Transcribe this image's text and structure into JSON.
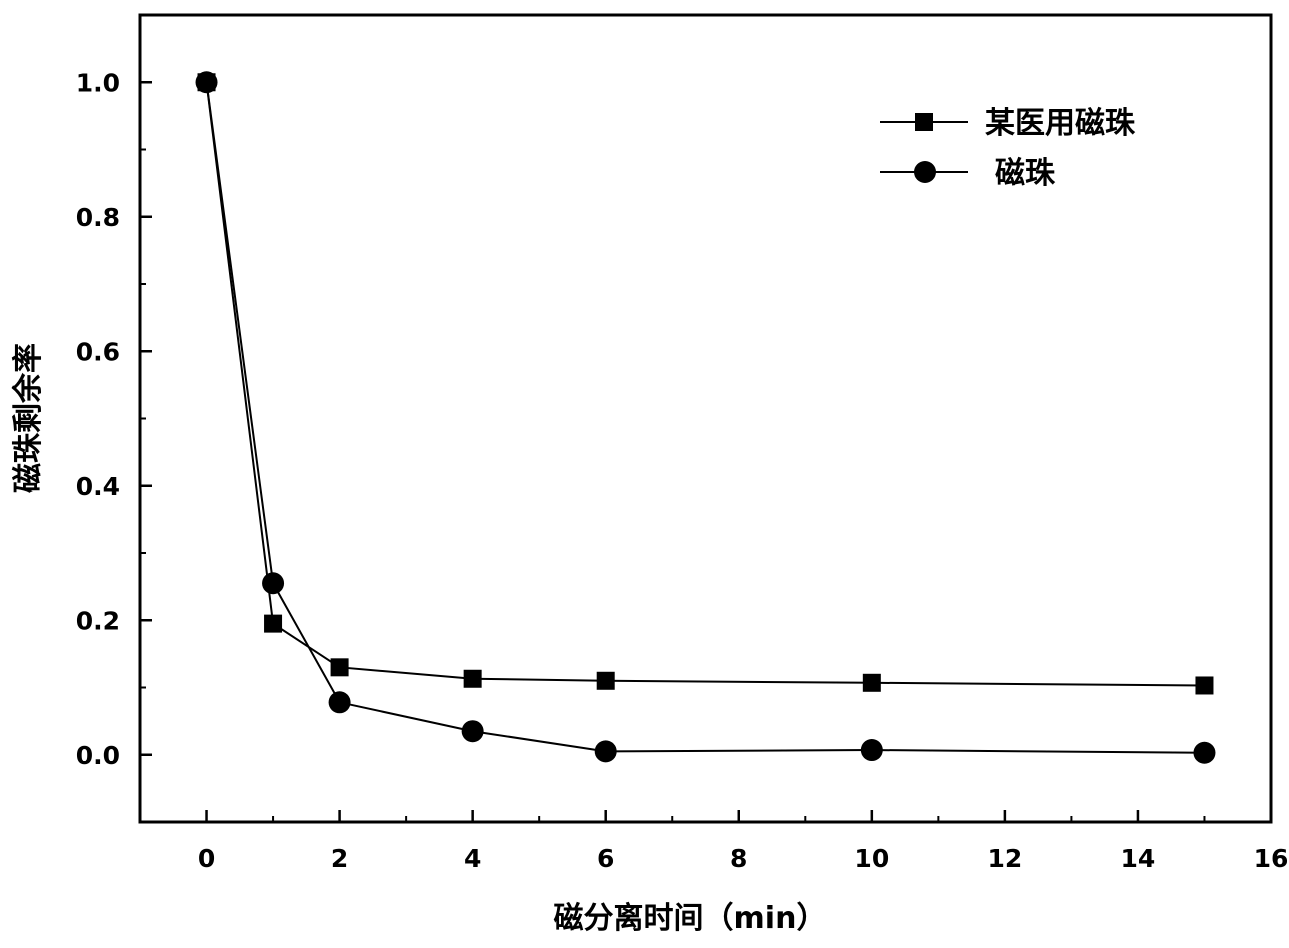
{
  "chart_data": {
    "type": "line",
    "xlabel": "磁分离时间（min）",
    "ylabel": "磁珠剩余率",
    "xlim": [
      -1,
      16
    ],
    "ylim": [
      -0.1,
      1.1
    ],
    "xticks": [
      0,
      2,
      4,
      6,
      8,
      10,
      12,
      14,
      16
    ],
    "yticks": [
      0.0,
      0.2,
      0.4,
      0.6,
      0.8,
      1.0
    ],
    "xtick_labels": [
      "0",
      "2",
      "4",
      "6",
      "8",
      "10",
      "12",
      "14",
      "16"
    ],
    "ytick_labels": [
      "0.0",
      "0.2",
      "0.4",
      "0.6",
      "0.8",
      "1.0"
    ],
    "grid": false,
    "legend_position": "top-right",
    "series": [
      {
        "name": "某医用磁珠",
        "marker": "square",
        "color": "#000000",
        "x": [
          0,
          1,
          2,
          4,
          6,
          10,
          15
        ],
        "y": [
          1.0,
          0.195,
          0.13,
          0.113,
          0.11,
          0.107,
          0.103
        ]
      },
      {
        "name": "磁珠",
        "marker": "circle",
        "color": "#000000",
        "x": [
          0,
          1,
          2,
          4,
          6,
          10,
          15
        ],
        "y": [
          1.0,
          0.255,
          0.078,
          0.035,
          0.005,
          0.007,
          0.003
        ]
      }
    ]
  }
}
